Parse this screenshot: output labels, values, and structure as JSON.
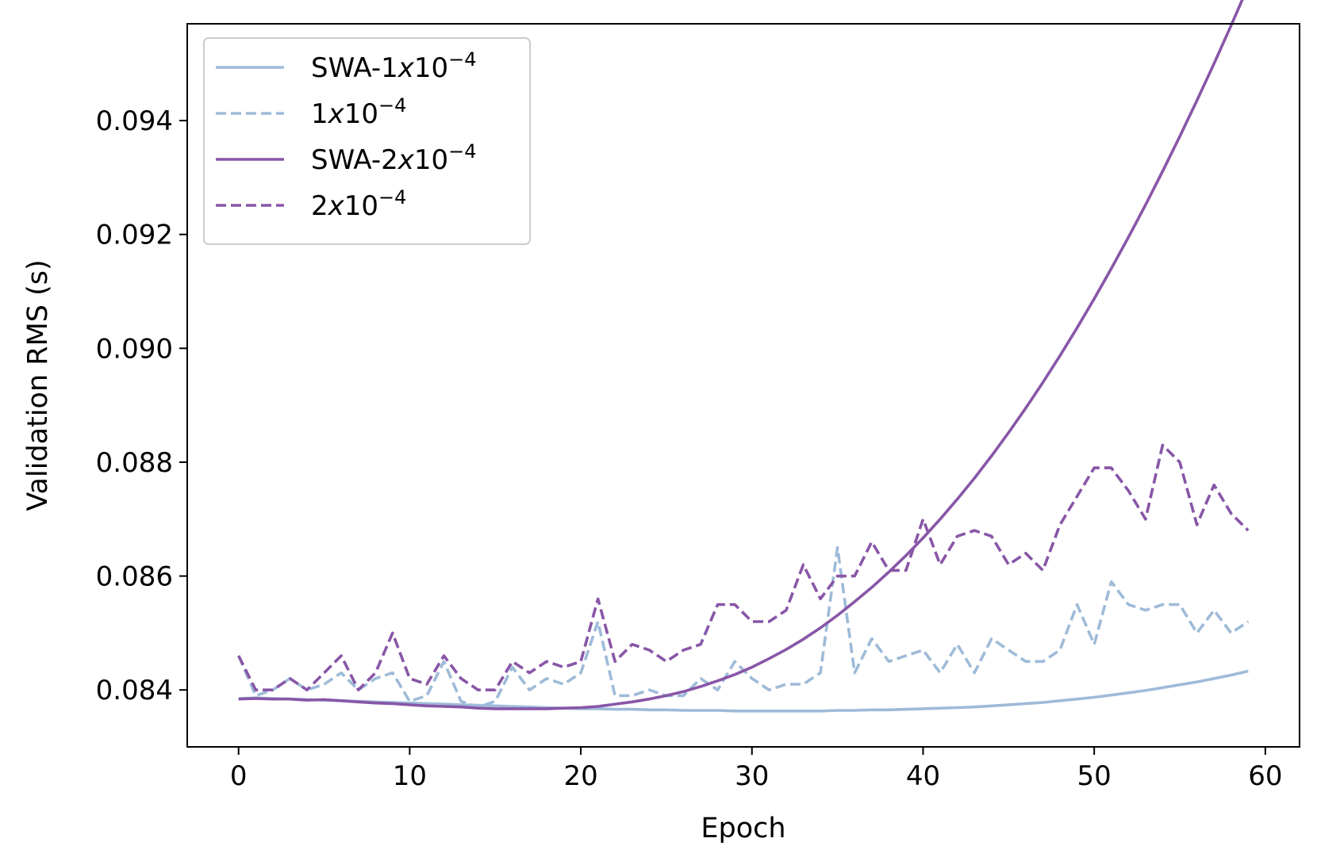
{
  "chart_data": {
    "type": "line",
    "xlabel": "Epoch",
    "ylabel": "Validation RMS (s)",
    "xlim": [
      -3,
      62
    ],
    "ylim": [
      0.083,
      0.0957
    ],
    "xticks": [
      0,
      10,
      20,
      30,
      40,
      50,
      60
    ],
    "yticks": [
      0.084,
      0.086,
      0.088,
      0.09,
      0.092,
      0.094
    ],
    "ytick_labels": [
      "0.084",
      "0.086",
      "0.088",
      "0.090",
      "0.092",
      "0.094"
    ],
    "grid": false,
    "legend_position": "top-left",
    "x": [
      0,
      1,
      2,
      3,
      4,
      5,
      6,
      7,
      8,
      9,
      10,
      11,
      12,
      13,
      14,
      15,
      16,
      17,
      18,
      19,
      20,
      21,
      22,
      23,
      24,
      25,
      26,
      27,
      28,
      29,
      30,
      31,
      32,
      33,
      34,
      35,
      36,
      37,
      38,
      39,
      40,
      41,
      42,
      43,
      44,
      45,
      46,
      47,
      48,
      49,
      50,
      51,
      52,
      53,
      54,
      55,
      56,
      57,
      58,
      59
    ],
    "series": [
      {
        "name": "SWA-1x10^-4",
        "legend_prefix": "SWA-1",
        "legend_x": "x",
        "legend_base": "10",
        "legend_exp": "−4",
        "color": "#9ebbd8",
        "dash": "solid",
        "values": [
          0.08385,
          0.08386,
          0.08385,
          0.08384,
          0.08383,
          0.08382,
          0.08381,
          0.0838,
          0.08379,
          0.08378,
          0.08377,
          0.08376,
          0.08375,
          0.08374,
          0.08373,
          0.08372,
          0.08371,
          0.0837,
          0.08369,
          0.08368,
          0.08367,
          0.08367,
          0.08366,
          0.08366,
          0.08365,
          0.08365,
          0.08364,
          0.08364,
          0.08364,
          0.08363,
          0.08363,
          0.08363,
          0.08363,
          0.08363,
          0.08363,
          0.08364,
          0.08364,
          0.08365,
          0.08365,
          0.08366,
          0.08367,
          0.08368,
          0.08369,
          0.0837,
          0.08372,
          0.08374,
          0.08376,
          0.08378,
          0.08381,
          0.08384,
          0.08387,
          0.08391,
          0.08395,
          0.08399,
          0.08404,
          0.08409,
          0.08414,
          0.0842,
          0.08426,
          0.08433
        ]
      },
      {
        "name": "1x10^-4",
        "legend_prefix": "1",
        "legend_x": "x",
        "legend_base": "10",
        "legend_exp": "−4",
        "color": "#9ebbd8",
        "dash": "dashed",
        "values": [
          0.0846,
          0.0839,
          0.084,
          0.0842,
          0.084,
          0.0841,
          0.0843,
          0.084,
          0.0842,
          0.0843,
          0.0838,
          0.0839,
          0.0845,
          0.0838,
          0.0837,
          0.0838,
          0.0844,
          0.084,
          0.0842,
          0.0841,
          0.0843,
          0.0852,
          0.0839,
          0.0839,
          0.084,
          0.0839,
          0.0839,
          0.0842,
          0.084,
          0.0845,
          0.0842,
          0.084,
          0.0841,
          0.0841,
          0.0843,
          0.0865,
          0.0843,
          0.0849,
          0.0845,
          0.0846,
          0.0847,
          0.0843,
          0.0848,
          0.0843,
          0.0849,
          0.0847,
          0.0845,
          0.0845,
          0.0847,
          0.0855,
          0.0848,
          0.0859,
          0.0855,
          0.0854,
          0.0855,
          0.0855,
          0.085,
          0.0854,
          0.085,
          0.0852
        ]
      },
      {
        "name": "SWA-2x10^-4",
        "legend_prefix": "SWA-2",
        "legend_x": "x",
        "legend_base": "10",
        "legend_exp": "−4",
        "color": "#8856a7",
        "dash": "solid",
        "values": [
          0.08384,
          0.08385,
          0.08384,
          0.08384,
          0.08382,
          0.08383,
          0.08381,
          0.08379,
          0.08377,
          0.08376,
          0.08374,
          0.08372,
          0.08371,
          0.0837,
          0.08368,
          0.08367,
          0.08367,
          0.08367,
          0.08367,
          0.08368,
          0.08369,
          0.08371,
          0.08375,
          0.08379,
          0.08384,
          0.0839,
          0.08397,
          0.08406,
          0.08416,
          0.08427,
          0.0844,
          0.08455,
          0.08471,
          0.08489,
          0.08509,
          0.08531,
          0.08555,
          0.0858,
          0.08607,
          0.08636,
          0.08667,
          0.087,
          0.08735,
          0.08772,
          0.08811,
          0.08852,
          0.08895,
          0.0894,
          0.08987,
          0.09036,
          0.09087,
          0.0914,
          0.09195,
          0.09252,
          0.09311,
          0.09372,
          0.09435,
          0.095,
          0.09567,
          0.09636
        ]
      },
      {
        "name": "2x10^-4",
        "legend_prefix": "2",
        "legend_x": "x",
        "legend_base": "10",
        "legend_exp": "−4",
        "color": "#8856a7",
        "dash": "dashed",
        "values": [
          0.0846,
          0.084,
          0.084,
          0.0842,
          0.084,
          0.0843,
          0.0846,
          0.084,
          0.0843,
          0.085,
          0.0842,
          0.0841,
          0.0846,
          0.0842,
          0.084,
          0.084,
          0.0845,
          0.0843,
          0.0845,
          0.0844,
          0.0845,
          0.0856,
          0.0845,
          0.0848,
          0.0847,
          0.0845,
          0.0847,
          0.0848,
          0.0855,
          0.0855,
          0.0852,
          0.0852,
          0.0854,
          0.0862,
          0.0856,
          0.086,
          0.086,
          0.0866,
          0.0861,
          0.0861,
          0.087,
          0.0862,
          0.0867,
          0.0868,
          0.0867,
          0.0862,
          0.0864,
          0.0861,
          0.0869,
          0.0874,
          0.0879,
          0.0879,
          0.0875,
          0.087,
          0.0883,
          0.088,
          0.0869,
          0.0876,
          0.0871,
          0.0868
        ]
      }
    ]
  }
}
